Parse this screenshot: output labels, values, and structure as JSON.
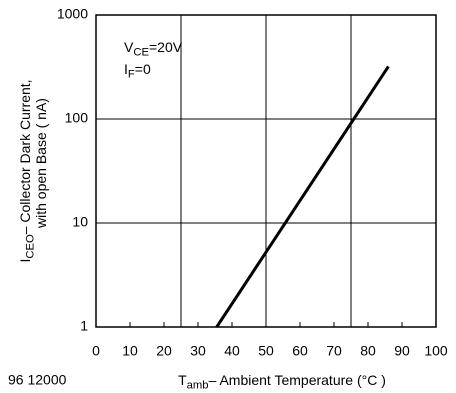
{
  "chart_data": {
    "type": "line",
    "x_label": {
      "main": "T",
      "sub": "amb",
      "rest": "– Ambient Temperature (°C )"
    },
    "y_label": [
      {
        "main": "I",
        "sub": "CEO",
        "rest": "– Collector Dark Current,"
      },
      {
        "main": "with open Base ( nA)"
      }
    ],
    "annotations": [
      {
        "main": "V",
        "sub": "CE",
        "rest": "=20V"
      },
      {
        "main": "I",
        "sub": "F",
        "rest": "=0"
      }
    ],
    "footnote": "96 12000",
    "series": [
      {
        "color": "#000000",
        "x": [
          35.5,
          86
        ],
        "values": [
          1,
          320
        ]
      }
    ],
    "xlim": [
      0,
      100
    ],
    "xticks": [
      0,
      10,
      20,
      30,
      40,
      50,
      60,
      70,
      80,
      90,
      100
    ],
    "x_grid": [
      25,
      50,
      75
    ],
    "ylim": [
      1,
      1000
    ],
    "yticks": [
      1,
      10,
      100,
      1000
    ],
    "y_log": true,
    "grid": true
  }
}
